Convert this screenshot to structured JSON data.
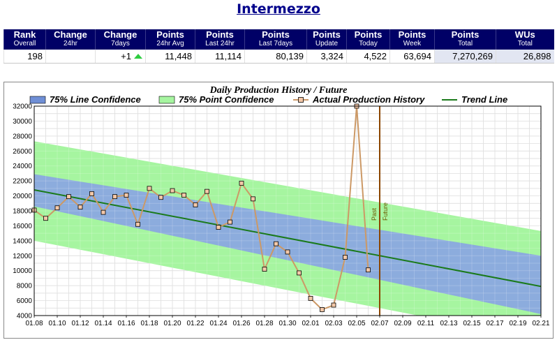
{
  "page": {
    "title": "Intermezzo"
  },
  "stats": {
    "headers": [
      {
        "main": "Rank",
        "sub": "Overall"
      },
      {
        "main": "Change",
        "sub": "24hr"
      },
      {
        "main": "Change",
        "sub": "7days"
      },
      {
        "main": "Points",
        "sub": "24hr Avg"
      },
      {
        "main": "Points",
        "sub": "Last 24hr"
      },
      {
        "main": "Points",
        "sub": "Last 7days"
      },
      {
        "main": "Points",
        "sub": "Update"
      },
      {
        "main": "Points",
        "sub": "Today"
      },
      {
        "main": "Points",
        "sub": "Week"
      },
      {
        "main": "Points",
        "sub": "Total"
      },
      {
        "main": "WUs",
        "sub": "Total"
      }
    ],
    "values": [
      "198",
      "",
      "+1",
      "11,448",
      "11,114",
      "80,139",
      "3,324",
      "4,522",
      "63,694",
      "7,270,269",
      "26,898"
    ],
    "change_7days_direction": "up",
    "up_color": "#2ecc40",
    "header_bg": "#000066"
  },
  "chart_data": {
    "type": "line",
    "title": "Daily Production History / Future",
    "legend": [
      {
        "label": "75% Line Confidence",
        "color": "#6f8fd6",
        "kind": "box"
      },
      {
        "label": "75% Point Confidence",
        "color": "#a6f5a0",
        "kind": "box"
      },
      {
        "label": "Actual Production History",
        "color": "#cc9966",
        "kind": "line-marker"
      },
      {
        "label": "Trend Line",
        "color": "#1a7a1a",
        "kind": "line"
      }
    ],
    "legend_position": "top",
    "x_tick_labels": [
      "01.08",
      "01.10",
      "01.12",
      "01.14",
      "01.16",
      "01.18",
      "01.20",
      "01.22",
      "01.24",
      "01.26",
      "01.28",
      "01.30",
      "02.01",
      "02.03",
      "02.05",
      "02.07",
      "02.09",
      "02.11",
      "02.13",
      "02.15",
      "02.17",
      "02.19",
      "02.21"
    ],
    "x_range_days": [
      0,
      44
    ],
    "ylim": [
      4000,
      32000
    ],
    "y_ticks": [
      4000,
      6000,
      8000,
      10000,
      12000,
      14000,
      16000,
      18000,
      20000,
      22000,
      24000,
      26000,
      28000,
      30000,
      32000
    ],
    "grid": true,
    "actual_series": {
      "name": "Actual Production History",
      "values": [
        18100,
        17000,
        18400,
        19900,
        18500,
        20300,
        17800,
        19900,
        20100,
        16200,
        21000,
        19800,
        20700,
        20100,
        18800,
        20600,
        15800,
        16500,
        21700,
        19600,
        10200,
        13600,
        12500,
        9700,
        6300,
        4800,
        5400,
        11800,
        32000,
        10100
      ]
    },
    "trend_line": {
      "start": 20800,
      "end": 7900
    },
    "line_confidence": {
      "upper_start": 22900,
      "upper_end": 12000,
      "lower_start": 18600,
      "lower_end": 4200
    },
    "point_confidence": {
      "upper_start": 27300,
      "upper_end": 15300,
      "lower_start": 14000,
      "lower_end": 800
    },
    "divider": {
      "day": 30,
      "left_label": "Past",
      "right_label": "Future",
      "color": "#8b4500"
    }
  }
}
